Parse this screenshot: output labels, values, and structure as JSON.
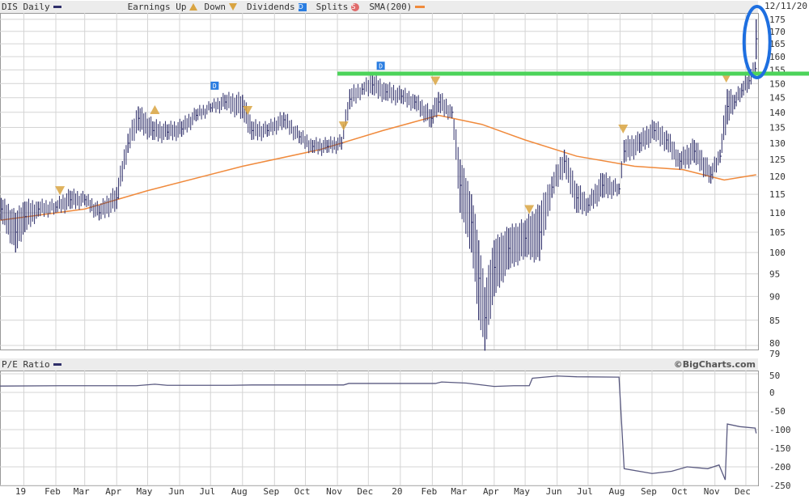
{
  "header": {
    "symbol_label": "DIS Daily",
    "earnings_up_label": "Earnings Up",
    "earnings_down_label": "Down",
    "dividends_label": "Dividends",
    "dividend_glyph": "D",
    "splits_label": "Splits",
    "split_glyph": "S",
    "sma_label": "SMA(200)",
    "date": "12/11/20"
  },
  "lower_header": {
    "label": "P/E Ratio",
    "copyright": "©BigCharts.com"
  },
  "colors": {
    "price": "#2f2f6a",
    "sma": "#f08a3c",
    "earnings": "#d9a441",
    "dividend": "#2a7de1",
    "split": "#e06a6a",
    "grid": "#d4d4d4",
    "annotation_line": "#4cd35a",
    "annotation_circle": "#1e6fe0"
  },
  "x_axis": {
    "ticks": [
      {
        "date": "2019-01-01",
        "label": "19"
      },
      {
        "date": "2019-02-01",
        "label": "Feb"
      },
      {
        "date": "2019-03-01",
        "label": "Mar"
      },
      {
        "date": "2019-04-01",
        "label": "Apr"
      },
      {
        "date": "2019-05-01",
        "label": "May"
      },
      {
        "date": "2019-06-01",
        "label": "Jun"
      },
      {
        "date": "2019-07-01",
        "label": "Jul"
      },
      {
        "date": "2019-08-01",
        "label": "Aug"
      },
      {
        "date": "2019-09-01",
        "label": "Sep"
      },
      {
        "date": "2019-10-01",
        "label": "Oct"
      },
      {
        "date": "2019-11-01",
        "label": "Nov"
      },
      {
        "date": "2019-12-01",
        "label": "Dec"
      },
      {
        "date": "2020-01-01",
        "label": "20"
      },
      {
        "date": "2020-02-01",
        "label": "Feb"
      },
      {
        "date": "2020-03-01",
        "label": "Mar"
      },
      {
        "date": "2020-04-01",
        "label": "Apr"
      },
      {
        "date": "2020-05-01",
        "label": "May"
      },
      {
        "date": "2020-06-01",
        "label": "Jun"
      },
      {
        "date": "2020-07-01",
        "label": "Jul"
      },
      {
        "date": "2020-08-01",
        "label": "Aug"
      },
      {
        "date": "2020-09-01",
        "label": "Sep"
      },
      {
        "date": "2020-10-01",
        "label": "Oct"
      },
      {
        "date": "2020-11-01",
        "label": "Nov"
      },
      {
        "date": "2020-12-01",
        "label": "Dec"
      }
    ],
    "range": [
      "2018-12-08",
      "2020-12-11"
    ]
  },
  "chart_data": [
    {
      "type": "line",
      "title": "DIS Daily",
      "scale": "log",
      "ylim": [
        79,
        175
      ],
      "y_ticks": [
        175,
        170,
        165,
        160,
        155,
        150,
        145,
        140,
        135,
        130,
        125,
        120,
        115,
        110,
        105,
        100,
        95,
        90,
        85,
        80
      ],
      "y_min_label": "79",
      "grid": true,
      "legend": "top",
      "price_range_series": {
        "name": "DIS Daily",
        "points": [
          [
            "2018-12-10",
            108,
            114
          ],
          [
            "2018-12-24",
            100,
            110
          ],
          [
            "2019-01-02",
            105,
            113
          ],
          [
            "2019-01-15",
            109,
            113
          ],
          [
            "2019-02-01",
            110,
            113
          ],
          [
            "2019-02-15",
            111,
            116
          ],
          [
            "2019-03-01",
            112,
            115
          ],
          [
            "2019-03-15",
            108,
            112
          ],
          [
            "2019-04-01",
            111,
            117
          ],
          [
            "2019-04-12",
            127,
            133
          ],
          [
            "2019-04-22",
            134,
            142
          ],
          [
            "2019-05-06",
            131,
            137
          ],
          [
            "2019-05-20",
            131,
            136
          ],
          [
            "2019-06-03",
            132,
            137
          ],
          [
            "2019-06-17",
            137,
            141
          ],
          [
            "2019-07-01",
            140,
            143
          ],
          [
            "2019-07-15",
            141,
            146
          ],
          [
            "2019-08-01",
            138,
            146
          ],
          [
            "2019-08-10",
            131,
            137
          ],
          [
            "2019-08-25",
            132,
            136
          ],
          [
            "2019-09-10",
            135,
            140
          ],
          [
            "2019-09-25",
            130,
            134
          ],
          [
            "2019-10-08",
            127,
            131
          ],
          [
            "2019-10-22",
            127,
            131
          ],
          [
            "2019-11-05",
            128,
            132
          ],
          [
            "2019-11-13",
            141,
            148
          ],
          [
            "2019-11-25",
            146,
            150
          ],
          [
            "2019-12-05",
            146,
            153
          ],
          [
            "2019-12-18",
            144,
            150
          ],
          [
            "2020-01-02",
            143,
            148
          ],
          [
            "2020-01-15",
            141,
            146
          ],
          [
            "2020-01-31",
            135,
            141
          ],
          [
            "2020-02-07",
            140,
            147
          ],
          [
            "2020-02-20",
            138,
            142
          ],
          [
            "2020-02-28",
            110,
            125
          ],
          [
            "2020-03-10",
            100,
            115
          ],
          [
            "2020-03-17",
            85,
            103
          ],
          [
            "2020-03-23",
            79,
            92
          ],
          [
            "2020-04-01",
            90,
            103
          ],
          [
            "2020-04-15",
            96,
            106
          ],
          [
            "2020-05-01",
            99,
            108
          ],
          [
            "2020-05-15",
            98,
            112
          ],
          [
            "2020-05-27",
            114,
            120
          ],
          [
            "2020-06-08",
            121,
            128
          ],
          [
            "2020-06-20",
            110,
            118
          ],
          [
            "2020-07-01",
            110,
            114
          ],
          [
            "2020-07-15",
            114,
            121
          ],
          [
            "2020-07-31",
            115,
            118
          ],
          [
            "2020-08-05",
            124,
            131
          ],
          [
            "2020-08-20",
            127,
            133
          ],
          [
            "2020-09-03",
            131,
            137
          ],
          [
            "2020-09-15",
            128,
            134
          ],
          [
            "2020-09-28",
            122,
            127
          ],
          [
            "2020-10-12",
            124,
            131
          ],
          [
            "2020-10-28",
            118,
            123
          ],
          [
            "2020-11-06",
            124,
            128
          ],
          [
            "2020-11-13",
            136,
            148
          ],
          [
            "2020-11-20",
            141,
            146
          ],
          [
            "2020-11-27",
            145,
            150
          ],
          [
            "2020-12-04",
            148,
            154
          ],
          [
            "2020-12-10",
            153,
            158
          ],
          [
            "2020-12-11",
            159,
            175
          ]
        ]
      },
      "sma_series": {
        "name": "SMA(200)",
        "points": [
          [
            "2018-12-08",
            108
          ],
          [
            "2019-03-01",
            111
          ],
          [
            "2019-05-01",
            116
          ],
          [
            "2019-08-01",
            123
          ],
          [
            "2019-10-15",
            128
          ],
          [
            "2019-12-15",
            134
          ],
          [
            "2020-02-07",
            139
          ],
          [
            "2020-03-20",
            136
          ],
          [
            "2020-05-01",
            131
          ],
          [
            "2020-06-20",
            126
          ],
          [
            "2020-08-15",
            123
          ],
          [
            "2020-10-01",
            122
          ],
          [
            "2020-11-10",
            119
          ],
          [
            "2020-12-11",
            120.5
          ]
        ]
      },
      "earnings": [
        {
          "date": "2019-02-05",
          "dir": "down"
        },
        {
          "date": "2019-05-08",
          "dir": "up"
        },
        {
          "date": "2019-08-06",
          "dir": "down"
        },
        {
          "date": "2019-11-07",
          "dir": "down"
        },
        {
          "date": "2020-02-04",
          "dir": "down"
        },
        {
          "date": "2020-05-05",
          "dir": "down"
        },
        {
          "date": "2020-08-04",
          "dir": "down"
        },
        {
          "date": "2020-11-12",
          "dir": "down"
        }
      ],
      "dividends": [
        {
          "date": "2019-07-05"
        },
        {
          "date": "2019-12-13"
        }
      ],
      "annotations": {
        "horizontal_line_price": 153.6,
        "horizontal_line_from": "2019-11-01",
        "circled_date": "2020-12-11"
      }
    },
    {
      "type": "line",
      "title": "P/E Ratio",
      "ylim": [
        -250,
        50
      ],
      "y_ticks": [
        50,
        0,
        -50,
        -100,
        -150,
        -200,
        -250
      ],
      "grid": true,
      "series": [
        {
          "name": "P/E Ratio",
          "points": [
            [
              "2018-12-08",
              17
            ],
            [
              "2019-02-05",
              18
            ],
            [
              "2019-04-20",
              18
            ],
            [
              "2019-05-08",
              22
            ],
            [
              "2019-05-20",
              19
            ],
            [
              "2019-07-20",
              19
            ],
            [
              "2019-08-10",
              20
            ],
            [
              "2019-11-07",
              20
            ],
            [
              "2019-11-12",
              24
            ],
            [
              "2020-02-04",
              24
            ],
            [
              "2020-02-10",
              28
            ],
            [
              "2020-03-05",
              25
            ],
            [
              "2020-04-01",
              16
            ],
            [
              "2020-04-20",
              18
            ],
            [
              "2020-05-05",
              18
            ],
            [
              "2020-05-08",
              38
            ],
            [
              "2020-06-01",
              44
            ],
            [
              "2020-06-20",
              42
            ],
            [
              "2020-07-31",
              41
            ],
            [
              "2020-08-05",
              -205
            ],
            [
              "2020-09-01",
              -218
            ],
            [
              "2020-09-20",
              -212
            ],
            [
              "2020-10-05",
              -200
            ],
            [
              "2020-10-25",
              -205
            ],
            [
              "2020-11-05",
              -195
            ],
            [
              "2020-11-11",
              -235
            ],
            [
              "2020-11-13",
              -85
            ],
            [
              "2020-11-25",
              -92
            ],
            [
              "2020-12-10",
              -96
            ],
            [
              "2020-12-11",
              -110
            ]
          ]
        }
      ]
    }
  ]
}
